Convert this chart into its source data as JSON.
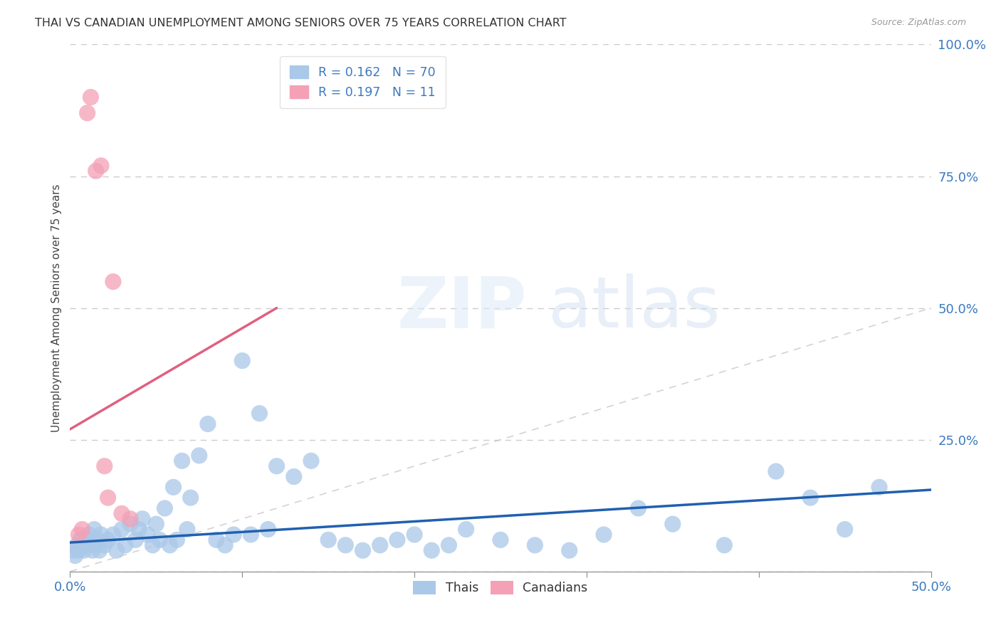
{
  "title": "THAI VS CANADIAN UNEMPLOYMENT AMONG SENIORS OVER 75 YEARS CORRELATION CHART",
  "source": "Source: ZipAtlas.com",
  "ylabel": "Unemployment Among Seniors over 75 years",
  "xlim": [
    0.0,
    0.5
  ],
  "ylim": [
    0.0,
    1.0
  ],
  "background_color": "#ffffff",
  "thai_R": 0.162,
  "thai_N": 70,
  "canadian_R": 0.197,
  "canadian_N": 11,
  "thai_color": "#aac8e8",
  "canadian_color": "#f4a0b5",
  "thai_line_color": "#2060b0",
  "canadian_line_color": "#e06080",
  "thai_scatter_x": [
    0.002,
    0.003,
    0.004,
    0.005,
    0.006,
    0.007,
    0.008,
    0.009,
    0.01,
    0.011,
    0.012,
    0.013,
    0.014,
    0.015,
    0.016,
    0.017,
    0.018,
    0.02,
    0.022,
    0.025,
    0.027,
    0.03,
    0.032,
    0.035,
    0.038,
    0.04,
    0.042,
    0.045,
    0.048,
    0.05,
    0.052,
    0.055,
    0.058,
    0.06,
    0.062,
    0.065,
    0.068,
    0.07,
    0.075,
    0.08,
    0.085,
    0.09,
    0.095,
    0.1,
    0.105,
    0.11,
    0.115,
    0.12,
    0.13,
    0.14,
    0.15,
    0.16,
    0.17,
    0.18,
    0.19,
    0.2,
    0.21,
    0.22,
    0.23,
    0.25,
    0.27,
    0.29,
    0.31,
    0.33,
    0.35,
    0.38,
    0.41,
    0.43,
    0.45,
    0.47
  ],
  "thai_scatter_y": [
    0.04,
    0.03,
    0.05,
    0.04,
    0.06,
    0.05,
    0.04,
    0.06,
    0.05,
    0.07,
    0.06,
    0.04,
    0.08,
    0.05,
    0.06,
    0.04,
    0.07,
    0.05,
    0.06,
    0.07,
    0.04,
    0.08,
    0.05,
    0.09,
    0.06,
    0.08,
    0.1,
    0.07,
    0.05,
    0.09,
    0.06,
    0.12,
    0.05,
    0.16,
    0.06,
    0.21,
    0.08,
    0.14,
    0.22,
    0.28,
    0.06,
    0.05,
    0.07,
    0.4,
    0.07,
    0.3,
    0.08,
    0.2,
    0.18,
    0.21,
    0.06,
    0.05,
    0.04,
    0.05,
    0.06,
    0.07,
    0.04,
    0.05,
    0.08,
    0.06,
    0.05,
    0.04,
    0.07,
    0.12,
    0.09,
    0.05,
    0.19,
    0.14,
    0.08,
    0.16
  ],
  "canadian_scatter_x": [
    0.005,
    0.007,
    0.01,
    0.012,
    0.015,
    0.018,
    0.02,
    0.022,
    0.025,
    0.03,
    0.035
  ],
  "canadian_scatter_y": [
    0.07,
    0.08,
    0.87,
    0.9,
    0.76,
    0.77,
    0.2,
    0.14,
    0.55,
    0.11,
    0.1
  ],
  "canadian_line_x0": 0.0,
  "canadian_line_y0": 0.27,
  "canadian_line_x1": 0.12,
  "canadian_line_y1": 0.5,
  "thai_line_x0": 0.0,
  "thai_line_y0": 0.055,
  "thai_line_x1": 0.5,
  "thai_line_y1": 0.155
}
